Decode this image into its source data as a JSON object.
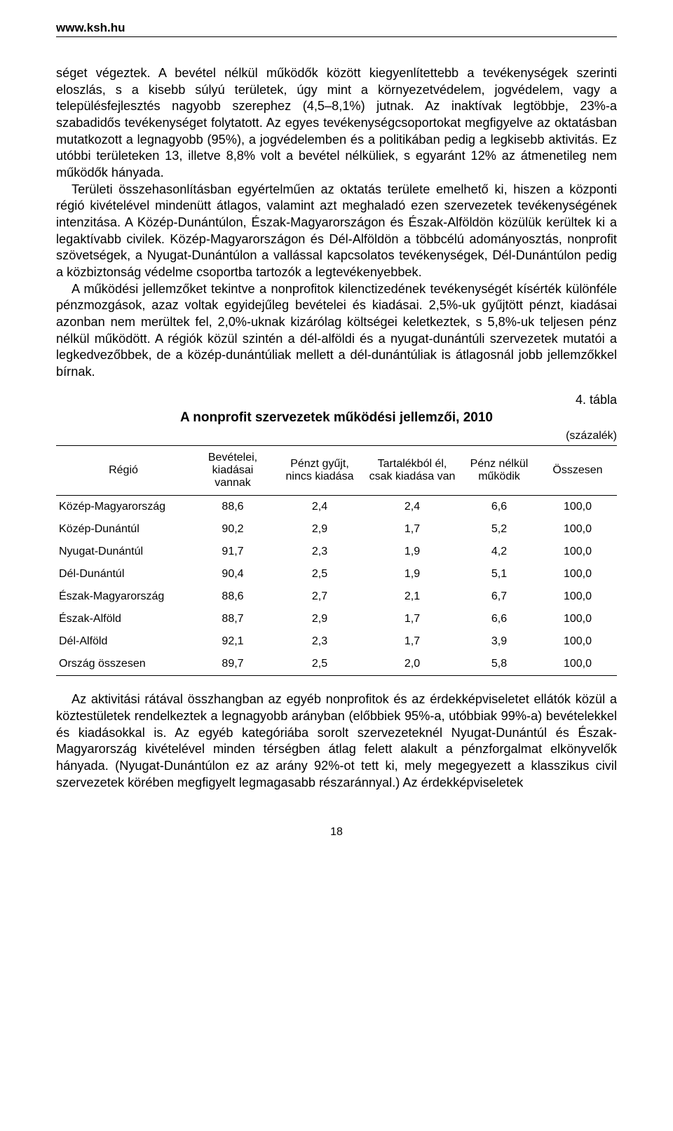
{
  "header": {
    "url": "www.ksh.hu"
  },
  "paragraphs": {
    "p1": "séget végeztek. A bevétel nélkül működők között kiegyenlítettebb a tevékenységek szerinti eloszlás, s a kisebb súlyú területek, úgy mint a környezetvédelem, jogvédelem, vagy a településfejlesztés nagyobb szerephez (4,5–8,1%) jutnak. Az inaktívak legtöbbje, 23%-a szabadidős tevékenységet folytatott. Az egyes tevékenységcsoportokat megfigyelve az oktatásban mutatkozott a legnagyobb (95%), a jogvédelemben és a politikában pedig a legkisebb aktivitás. Ez utóbbi területeken 13, illetve 8,8% volt a bevétel nélküliek, s egyaránt 12% az átmenetileg nem működők hányada.",
    "p2": "Területi összehasonlításban egyértelműen az oktatás területe emelhető ki, hiszen a központi régió kivételével mindenütt átlagos, valamint azt meghaladó ezen szervezetek tevékenységének intenzitása. A Közép-Dunántúlon, Észak-Magyarországon és Észak-Alföldön közülük kerültek ki a legaktívabb civilek. Közép-Magyarországon és Dél-Alföldön a többcélú adományosztás, nonprofit szövetségek, a Nyugat-Dunántúlon a vallással kapcsolatos tevékenységek, Dél-Dunántúlon pedig a közbiztonság védelme csoportba tartozók a legtevékenyebbek.",
    "p3": "A működési jellemzőket tekintve a nonprofitok kilenctizedének tevékenységét kísérték különféle pénzmozgások, azaz voltak egyidejűleg bevételei és kiadásai. 2,5%-uk gyűjtött pénzt, kiadásai azonban nem merültek fel, 2,0%-uknak kizárólag költségei keletkeztek, s 5,8%-uk teljesen pénz nélkül működött. A régiók közül szintén a dél-alföldi és a nyugat-dunántúli szervezetek mutatói a legkedvezőbbek, de a közép-dunántúliak mellett a dél-dunántúliak is átlagosnál jobb jellemzőkkel bírnak.",
    "p4": "Az aktivitási rátával összhangban az egyéb nonprofitok és az érdekképviseletet ellátók közül a köztestületek rendelkeztek a legnagyobb arányban (előbbiek 95%-a, utóbbiak 99%-a) bevételekkel és kiadásokkal is. Az egyéb kategóriába sorolt szervezeteknél Nyugat-Dunántúl és Észak-Magyarország kivételével minden térségben átlag felett alakult a pénzforgalmat elkönyvelők hányada. (Nyugat-Dunántúlon ez az arány 92%-ot tett ki, mely megegyezett a klasszikus civil szervezetek körében megfigyelt legmagasabb részaránnyal.) Az érdekképviseletek"
  },
  "table": {
    "label": "4. tábla",
    "title": "A nonprofit szervezetek működési jellemzői, 2010",
    "unit": "(százalék)",
    "columns": [
      "Régió",
      "Bevételei, kiadásai vannak",
      "Pénzt gyűjt, nincs kiadása",
      "Tartalékból él, csak kiadása van",
      "Pénz nélkül működik",
      "Összesen"
    ],
    "column_widths": [
      "24%",
      "15%",
      "16%",
      "17%",
      "14%",
      "14%"
    ],
    "rows": [
      [
        "Közép-Magyarország",
        "88,6",
        "2,4",
        "2,4",
        "6,6",
        "100,0"
      ],
      [
        "Közép-Dunántúl",
        "90,2",
        "2,9",
        "1,7",
        "5,2",
        "100,0"
      ],
      [
        "Nyugat-Dunántúl",
        "91,7",
        "2,3",
        "1,9",
        "4,2",
        "100,0"
      ],
      [
        "Dél-Dunántúl",
        "90,4",
        "2,5",
        "1,9",
        "5,1",
        "100,0"
      ],
      [
        "Észak-Magyarország",
        "88,6",
        "2,7",
        "2,1",
        "6,7",
        "100,0"
      ],
      [
        "Észak-Alföld",
        "88,7",
        "2,9",
        "1,7",
        "6,6",
        "100,0"
      ],
      [
        "Dél-Alföld",
        "92,1",
        "2,3",
        "1,7",
        "3,9",
        "100,0"
      ],
      [
        "Ország összesen",
        "89,7",
        "2,5",
        "2,0",
        "5,8",
        "100,0"
      ]
    ],
    "header_fontsize": 16,
    "cell_fontsize": 16,
    "border_color": "#000000"
  },
  "page_number": "18"
}
